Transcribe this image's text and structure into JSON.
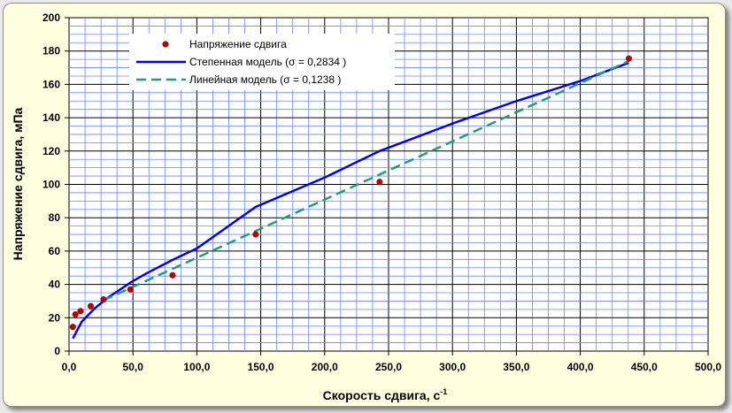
{
  "chart_data": {
    "type": "line",
    "xlabel": "Скорость сдвига, с",
    "xlabel_sup": "-1",
    "ylabel": "Напряжение сдвига, мПа",
    "xlim": [
      0,
      500
    ],
    "ylim": [
      0,
      200
    ],
    "x_ticks": [
      "0,0",
      "50,0",
      "100,0",
      "150,0",
      "200,0",
      "250,0",
      "300,0",
      "350,0",
      "400,0",
      "450,0",
      "500,0"
    ],
    "y_ticks": [
      "0",
      "20",
      "40",
      "60",
      "80",
      "100",
      "120",
      "140",
      "160",
      "180",
      "200"
    ],
    "grid": true,
    "legend_position": "top-left",
    "series": [
      {
        "name": "Напряжение сдвига",
        "kind": "scatter",
        "color": "#c00000",
        "x": [
          3,
          5,
          9,
          17,
          27,
          48,
          81,
          146,
          243,
          438
        ],
        "y": [
          14.5,
          22,
          24,
          27,
          31,
          37,
          45.5,
          70,
          101.5,
          175.5
        ]
      },
      {
        "name": "Степенная модель (σ = 0,2834 )",
        "kind": "line",
        "color": "#0000ff",
        "dash": "solid",
        "x": [
          3,
          10,
          20,
          30,
          48,
          60,
          81,
          100,
          146,
          200,
          243,
          300,
          350,
          400,
          438
        ],
        "y": [
          7.6,
          17.7,
          25.6,
          31.8,
          41.1,
          46.4,
          54.7,
          61.6,
          86.5,
          104.1,
          120.0,
          136.5,
          150.0,
          162.0,
          173.0
        ]
      },
      {
        "name": "Линейная модель (σ = 0,1238 )",
        "kind": "line",
        "color": "#1f9e7a",
        "dash": "dashed",
        "x": [
          27,
          438
        ],
        "y": [
          30.5,
          174
        ]
      }
    ]
  }
}
